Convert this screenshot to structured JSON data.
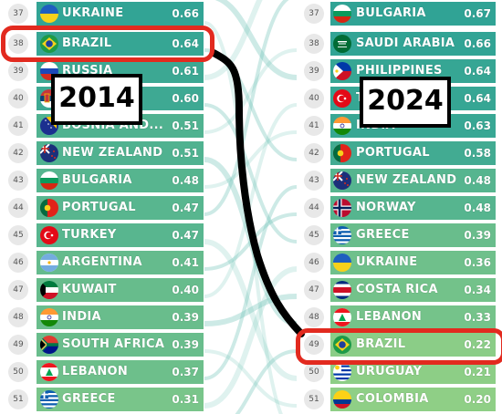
{
  "left_year": "2014",
  "right_year": "2024",
  "colors": {
    "highlight": "#e22a1f",
    "connector": "#000000",
    "bar_teal": "#3aaa95",
    "bar_light": "#8fcf86",
    "link_teal": "#6fc3b6"
  },
  "left_list": [
    {
      "rank": "37",
      "name": "UKRAINE",
      "score": "0.66",
      "flag": "ukraine",
      "clipped": true
    },
    {
      "rank": "38",
      "name": "BRAZIL",
      "score": "0.64",
      "flag": "brazil",
      "highlighted": true
    },
    {
      "rank": "39",
      "name": "RUSSIA",
      "score": "0.61",
      "flag": "russia"
    },
    {
      "rank": "40",
      "name": "SERBIA",
      "score": "0.60",
      "flag": "serbia"
    },
    {
      "rank": "41",
      "name": "BOSNIA AND...",
      "score": "0.51",
      "flag": "bosnia"
    },
    {
      "rank": "42",
      "name": "NEW ZEALAND",
      "score": "0.51",
      "flag": "newzealand"
    },
    {
      "rank": "43",
      "name": "BULGARIA",
      "score": "0.48",
      "flag": "bulgaria"
    },
    {
      "rank": "44",
      "name": "PORTUGAL",
      "score": "0.47",
      "flag": "portugal"
    },
    {
      "rank": "45",
      "name": "TURKEY",
      "score": "0.47",
      "flag": "turkey"
    },
    {
      "rank": "46",
      "name": "ARGENTINA",
      "score": "0.41",
      "flag": "argentina"
    },
    {
      "rank": "47",
      "name": "KUWAIT",
      "score": "0.40",
      "flag": "kuwait"
    },
    {
      "rank": "48",
      "name": "INDIA",
      "score": "0.39",
      "flag": "india"
    },
    {
      "rank": "49",
      "name": "SOUTH AFRICA",
      "score": "0.39",
      "flag": "southafrica"
    },
    {
      "rank": "50",
      "name": "LEBANON",
      "score": "0.37",
      "flag": "lebanon"
    },
    {
      "rank": "51",
      "name": "GREECE",
      "score": "0.31",
      "flag": "greece"
    }
  ],
  "right_list": [
    {
      "rank": "37",
      "name": "BULGARIA",
      "score": "0.67",
      "flag": "bulgaria",
      "clipped": true
    },
    {
      "rank": "38",
      "name": "SAUDI ARABIA",
      "score": "0.66",
      "flag": "saudi"
    },
    {
      "rank": "39",
      "name": "PHILIPPINES",
      "score": "0.64",
      "flag": "philippines"
    },
    {
      "rank": "40",
      "name": "TURKEY",
      "score": "0.64",
      "flag": "turkey"
    },
    {
      "rank": "41",
      "name": "INDIA",
      "score": "0.63",
      "flag": "india"
    },
    {
      "rank": "42",
      "name": "PORTUGAL",
      "score": "0.58",
      "flag": "portugal"
    },
    {
      "rank": "43",
      "name": "NEW ZEALAND",
      "score": "0.48",
      "flag": "newzealand"
    },
    {
      "rank": "44",
      "name": "NORWAY",
      "score": "0.48",
      "flag": "norway"
    },
    {
      "rank": "45",
      "name": "GREECE",
      "score": "0.39",
      "flag": "greece"
    },
    {
      "rank": "46",
      "name": "UKRAINE",
      "score": "0.36",
      "flag": "ukraine"
    },
    {
      "rank": "47",
      "name": "COSTA RICA",
      "score": "0.34",
      "flag": "costarica"
    },
    {
      "rank": "48",
      "name": "LEBANON",
      "score": "0.33",
      "flag": "lebanon"
    },
    {
      "rank": "49",
      "name": "BRAZIL",
      "score": "0.22",
      "flag": "brazil",
      "highlighted": true
    },
    {
      "rank": "50",
      "name": "URUGUAY",
      "score": "0.21",
      "flag": "uruguay"
    },
    {
      "rank": "51",
      "name": "COLOMBIA",
      "score": "0.20",
      "flag": "colombia"
    }
  ]
}
